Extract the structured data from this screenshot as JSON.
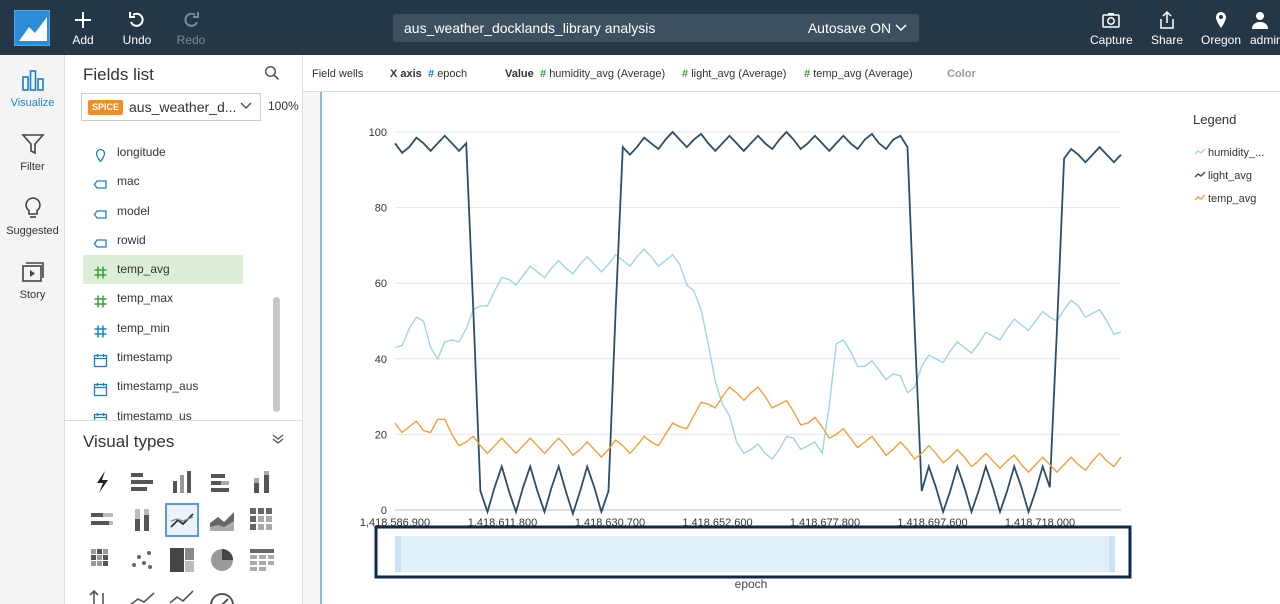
{
  "toolbar": {
    "add_label": "Add",
    "undo_label": "Undo",
    "redo_label": "Redo",
    "analysis_name": "aus_weather_docklands_library analysis",
    "autosave_label": "Autosave ON",
    "capture_label": "Capture",
    "share_label": "Share",
    "region_label": "Oregon",
    "user_label": "admin"
  },
  "leftnav": {
    "items": [
      {
        "label": "Visualize",
        "icon": "bar-chart-icon"
      },
      {
        "label": "Filter",
        "icon": "funnel-icon"
      },
      {
        "label": "Suggested",
        "icon": "lightbulb-icon"
      },
      {
        "label": "Story",
        "icon": "story-icon"
      }
    ]
  },
  "fields_panel": {
    "title": "Fields list",
    "dataset_badge": "SPICE",
    "dataset_name": "aus_weather_d...",
    "spice_percent": "100%",
    "fields": [
      {
        "name": "longitude",
        "icon": "geo-pin-icon"
      },
      {
        "name": "mac",
        "icon": "dimension-tag-icon"
      },
      {
        "name": "model",
        "icon": "dimension-tag-icon"
      },
      {
        "name": "rowid",
        "icon": "dimension-tag-icon"
      },
      {
        "name": "temp_avg",
        "icon": "measure-hash-icon"
      },
      {
        "name": "temp_max",
        "icon": "measure-hash-icon"
      },
      {
        "name": "temp_min",
        "icon": "measure-hash-icon"
      },
      {
        "name": "timestamp",
        "icon": "calendar-icon"
      },
      {
        "name": "timestamp_aus",
        "icon": "calendar-icon"
      },
      {
        "name": "timestamp_us",
        "icon": "calendar-icon"
      }
    ],
    "selected_field": "temp_avg"
  },
  "visual_types": {
    "title": "Visual types",
    "selected": "line-chart"
  },
  "field_wells": {
    "title": "Field wells",
    "x_axis_label": "X axis",
    "x_axis_field": "epoch",
    "value_label": "Value",
    "values": [
      "humidity_avg (Average)",
      "light_avg (Average)",
      "temp_avg (Average)"
    ],
    "color_label": "Color"
  },
  "chart_data": {
    "type": "line",
    "xlabel": "epoch",
    "ylabel": "",
    "ylim": [
      0,
      100
    ],
    "yticks": [
      0,
      20,
      40,
      60,
      80,
      100
    ],
    "xticks": [
      "1,418,586,900",
      "1,418,611,800",
      "1,418,630,700",
      "1,418,652,600",
      "1,418,677,800",
      "1,418,697,600",
      "1,418,718,000"
    ],
    "grid": true,
    "legend_title": "Legend",
    "legend_position": "right",
    "series": [
      {
        "name": "humidity_...",
        "color": "#9fd5e3",
        "values": [
          43,
          48,
          50,
          40,
          45,
          48,
          54,
          58,
          61,
          62,
          63,
          64,
          64,
          65,
          65,
          65,
          66,
          67,
          67,
          66,
          65,
          58,
          44,
          28,
          18,
          16,
          15,
          16,
          19,
          17,
          15,
          44,
          42,
          38,
          37,
          36,
          31,
          38,
          40,
          42,
          43,
          44,
          46,
          48,
          49,
          50,
          51,
          53,
          54,
          52,
          50,
          47
        ]
      },
      {
        "name": "light_avg",
        "color": "#2d4e67",
        "values": [
          97,
          96,
          97,
          97,
          97,
          97,
          5,
          6,
          5,
          6,
          5,
          6,
          5,
          5,
          6,
          5,
          96,
          96,
          97,
          98,
          98,
          98,
          97,
          97,
          97,
          97,
          97,
          98,
          98,
          97,
          97,
          97,
          97,
          98,
          97,
          98,
          96,
          5,
          6,
          5,
          6,
          5,
          6,
          5,
          6,
          5,
          6,
          93,
          94,
          94,
          94,
          94
        ]
      },
      {
        "name": "temp_avg",
        "color": "#f0a03c",
        "values": [
          23,
          22,
          21,
          24,
          20,
          18,
          17,
          17,
          17,
          17,
          17,
          17,
          17,
          16,
          16,
          16,
          17,
          17,
          18,
          20,
          22,
          25,
          28,
          30,
          31,
          31,
          30,
          28,
          26,
          23,
          22,
          20,
          19,
          18,
          17,
          16,
          16,
          15,
          15,
          14,
          14,
          13,
          13,
          13,
          12,
          12,
          12,
          12,
          12,
          13,
          13,
          14
        ]
      }
    ]
  },
  "colors": {
    "topbar": "#233746",
    "accent": "#1d7fc7",
    "selected_field_bg": "#dcefd6",
    "brush": "#e1f1f9",
    "brush_border": "#0f2a45"
  }
}
